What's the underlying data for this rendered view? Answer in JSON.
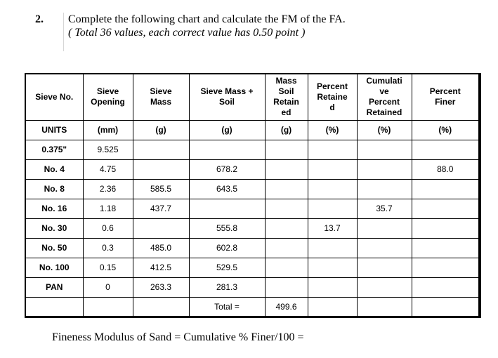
{
  "question": {
    "number": "2.",
    "instruction": "Complete the following chart and calculate the FM of the FA.",
    "points_note": "( Total 36 values, each correct value has 0.50 point )"
  },
  "table": {
    "headers": [
      "Sieve No.",
      "Sieve Opening",
      "Sieve Mass",
      "Sieve Mass + Soil",
      "Mass Soil Retain ed",
      "Percent Retaine d",
      "Cumulati ve Percent Retained",
      "Percent Finer"
    ],
    "header_lines": [
      [
        "Sieve No."
      ],
      [
        "Sieve",
        "Opening"
      ],
      [
        "Sieve",
        "Mass"
      ],
      [
        "Sieve Mass +",
        "Soil"
      ],
      [
        "Mass",
        "Soil",
        "Retain",
        "ed"
      ],
      [
        "Percent",
        "Retaine",
        "d"
      ],
      [
        "Cumulati",
        "ve",
        "Percent",
        "Retained"
      ],
      [
        "Percent",
        "Finer"
      ]
    ],
    "units": [
      "UNITS",
      "(mm)",
      "(g)",
      "(g)",
      "(g)",
      "(%)",
      "(%)",
      "(%)"
    ],
    "rows": [
      [
        "0.375\"",
        "9.525",
        "",
        "",
        "",
        "",
        "",
        ""
      ],
      [
        "No. 4",
        "4.75",
        "",
        "678.2",
        "",
        "",
        "",
        "88.0"
      ],
      [
        "No. 8",
        "2.36",
        "585.5",
        "643.5",
        "",
        "",
        "",
        ""
      ],
      [
        "No. 16",
        "1.18",
        "437.7",
        "",
        "",
        "",
        "35.7",
        ""
      ],
      [
        "No. 30",
        "0.6",
        "",
        "555.8",
        "",
        "13.7",
        "",
        ""
      ],
      [
        "No. 50",
        "0.3",
        "485.0",
        "602.8",
        "",
        "",
        "",
        ""
      ],
      [
        "No. 100",
        "0.15",
        "412.5",
        "529.5",
        "",
        "",
        "",
        ""
      ],
      [
        "PAN",
        "0",
        "263.3",
        "281.3",
        "",
        "",
        "",
        ""
      ],
      [
        "",
        "",
        "",
        "Total =",
        "499.6",
        "",
        "",
        ""
      ]
    ]
  },
  "footer": {
    "formula": "Fineness Modulus of Sand = Cumulative % Finer/100 ="
  }
}
